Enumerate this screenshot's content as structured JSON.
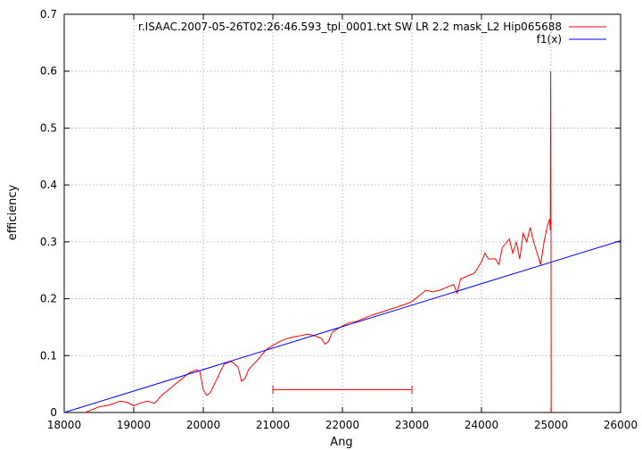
{
  "chart_data": {
    "type": "line",
    "xlabel": "Ang",
    "ylabel": "efficiency",
    "xlim": [
      18000,
      26000
    ],
    "ylim": [
      0,
      0.7
    ],
    "xticks": [
      "18000",
      "19000",
      "20000",
      "21000",
      "22000",
      "23000",
      "24000",
      "25000",
      "26000"
    ],
    "yticks": [
      "0",
      "0.1",
      "0.2",
      "0.3",
      "0.4",
      "0.5",
      "0.6",
      "0.7"
    ],
    "grid": true,
    "legend_position": "top-right",
    "colors": {
      "series1": "#ff0000",
      "series2": "#0000ff"
    },
    "series": [
      {
        "name": "r.ISAAC.2007-05-26T02:26:46.593_tpl_0001.txt  SW LR 2.2 mask_L2 Hip065688",
        "color": "#ff0000",
        "x": [
          18300,
          18400,
          18500,
          18600,
          18700,
          18800,
          18900,
          19000,
          19100,
          19200,
          19300,
          19400,
          19500,
          19600,
          19700,
          19800,
          19900,
          19950,
          20000,
          20050,
          20100,
          20200,
          20300,
          20400,
          20500,
          20550,
          20600,
          20650,
          20700,
          20800,
          20900,
          21000,
          21100,
          21200,
          21300,
          21400,
          21500,
          21600,
          21700,
          21750,
          21800,
          21850,
          21900,
          22000,
          22100,
          22200,
          22300,
          22400,
          22500,
          22600,
          22700,
          22800,
          22900,
          23000,
          23100,
          23200,
          23300,
          23400,
          23500,
          23600,
          23650,
          23700,
          23800,
          23900,
          24000,
          24050,
          24100,
          24200,
          24250,
          24300,
          24400,
          24450,
          24500,
          24550,
          24600,
          24650,
          24700,
          24750,
          24800,
          24850,
          24900,
          24950,
          24980,
          24990,
          24995,
          25000,
          25003,
          25005
        ],
        "y": [
          0.0,
          0.005,
          0.01,
          0.012,
          0.015,
          0.02,
          0.018,
          0.012,
          0.017,
          0.02,
          0.016,
          0.03,
          0.04,
          0.05,
          0.06,
          0.07,
          0.075,
          0.072,
          0.04,
          0.03,
          0.035,
          0.06,
          0.085,
          0.09,
          0.08,
          0.055,
          0.06,
          0.075,
          0.082,
          0.095,
          0.11,
          0.118,
          0.125,
          0.13,
          0.133,
          0.135,
          0.138,
          0.135,
          0.13,
          0.12,
          0.125,
          0.14,
          0.145,
          0.152,
          0.158,
          0.16,
          0.165,
          0.17,
          0.174,
          0.178,
          0.182,
          0.186,
          0.19,
          0.195,
          0.205,
          0.215,
          0.212,
          0.215,
          0.22,
          0.225,
          0.21,
          0.235,
          0.24,
          0.245,
          0.265,
          0.28,
          0.27,
          0.27,
          0.26,
          0.29,
          0.305,
          0.28,
          0.3,
          0.27,
          0.315,
          0.3,
          0.325,
          0.3,
          0.28,
          0.26,
          0.3,
          0.33,
          0.34,
          0.32,
          0.6,
          0.3,
          0.0,
          0.0
        ]
      },
      {
        "name": "f1(x)",
        "color": "#0000ff",
        "x": [
          18000,
          26000
        ],
        "y": [
          0.0,
          0.302
        ]
      }
    ],
    "errorbar": {
      "x": [
        21000,
        23000
      ],
      "y": 0.04
    }
  }
}
